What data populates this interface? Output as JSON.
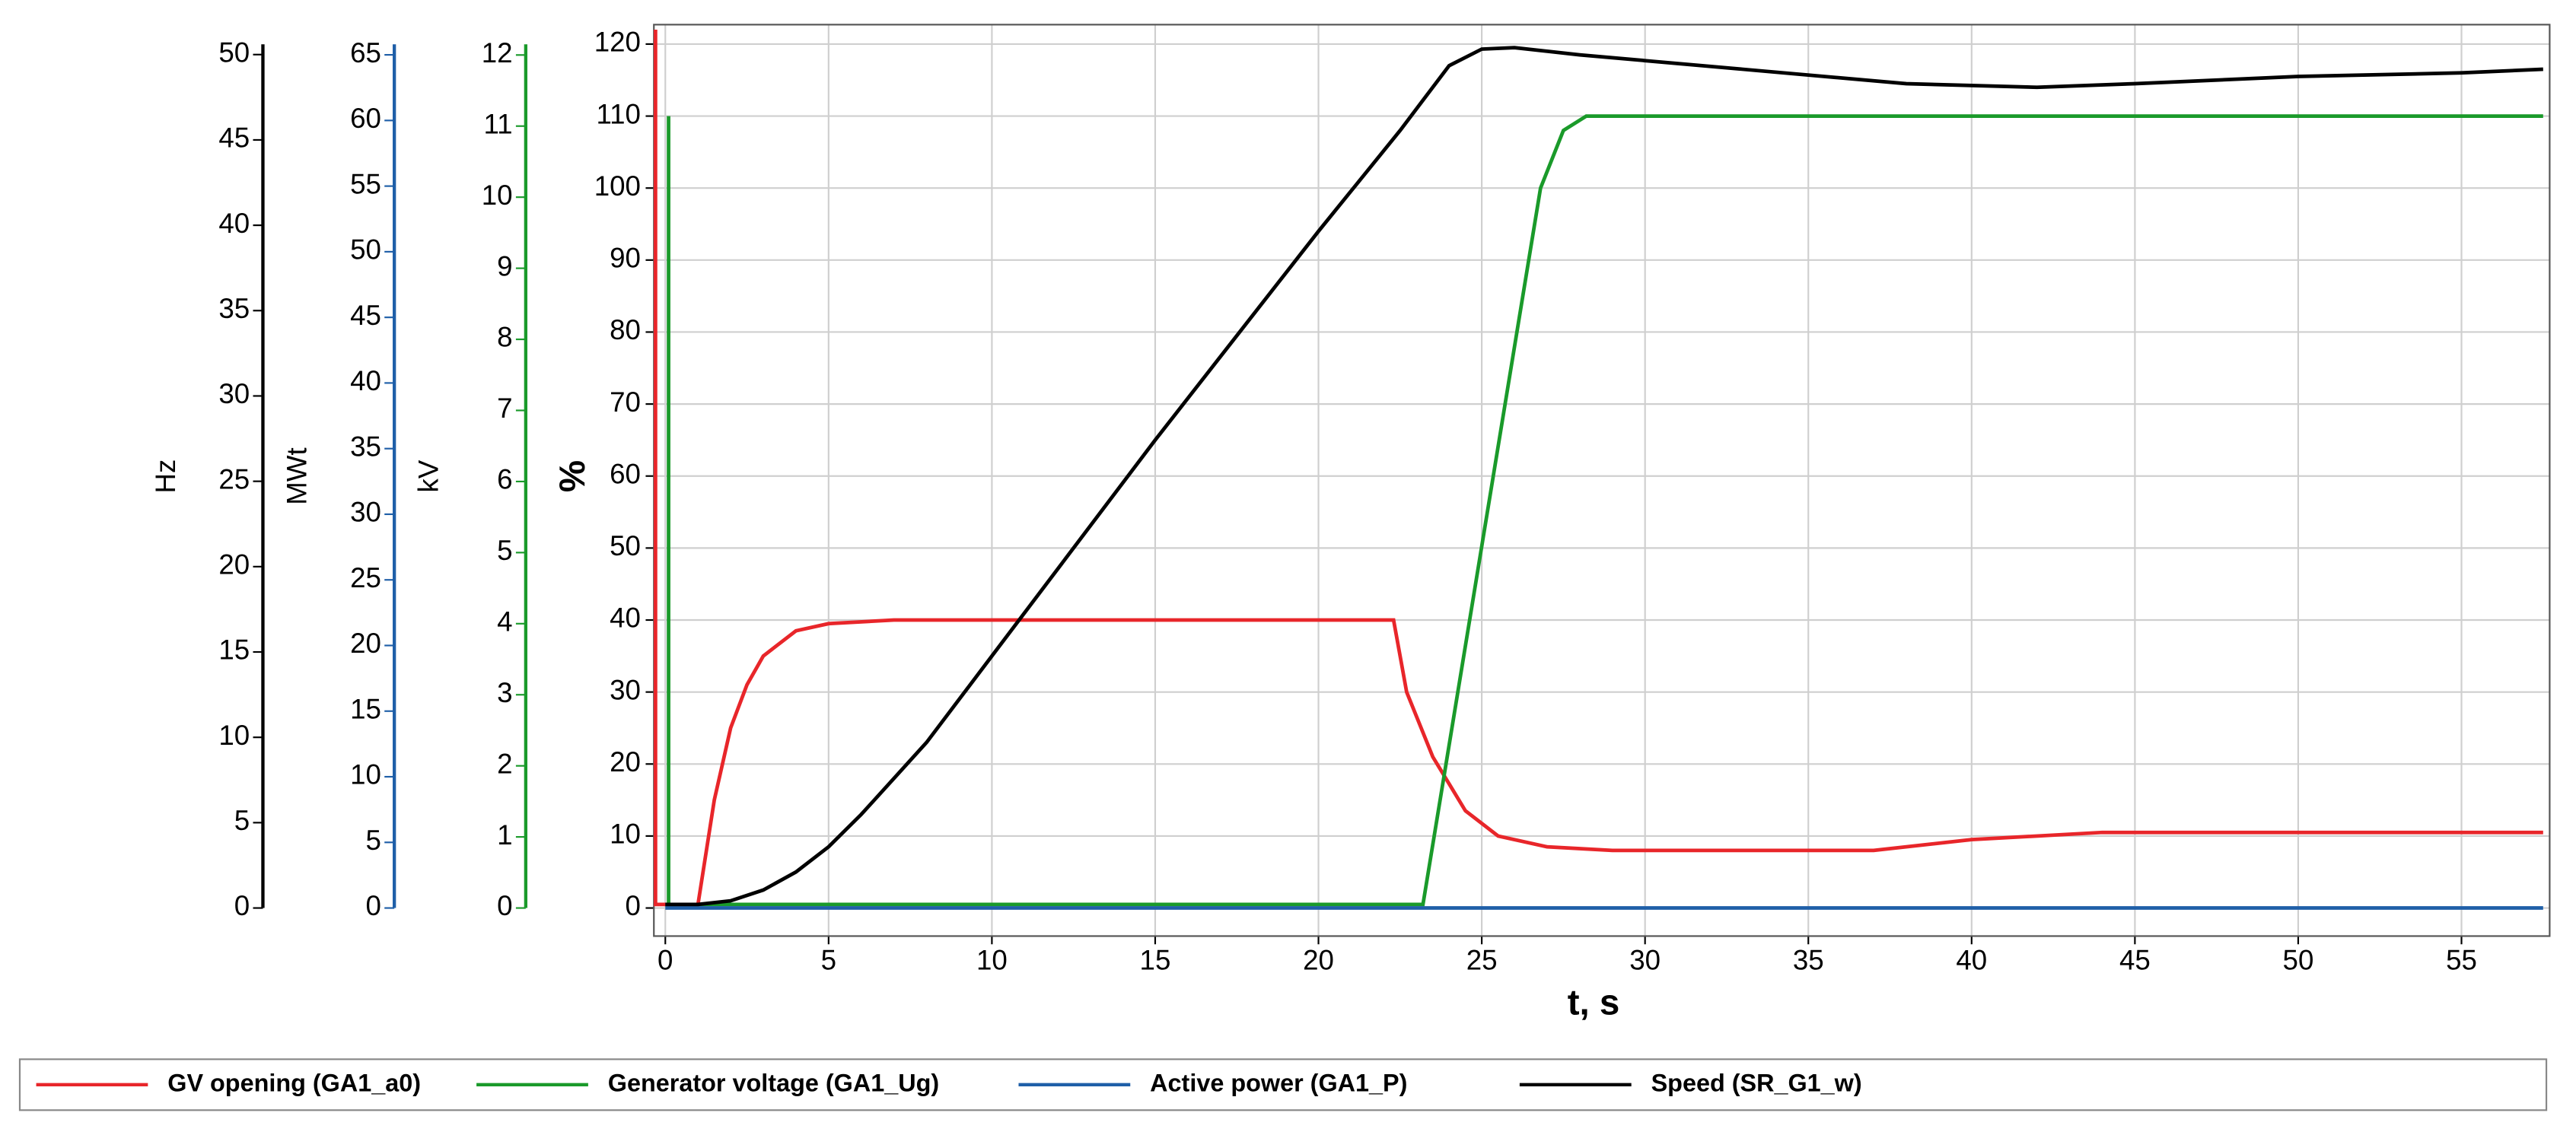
{
  "chart_data": {
    "type": "line",
    "xlabel": "t, s",
    "ylabel": "%",
    "xlim": [
      -0.35,
      57.7
    ],
    "xticks": [
      0,
      5,
      10,
      15,
      20,
      25,
      30,
      35,
      40,
      45,
      50,
      55
    ],
    "ylim": [
      -3.9,
      122.7
    ],
    "yticks": [
      0,
      10,
      20,
      30,
      40,
      50,
      60,
      70,
      80,
      90,
      100,
      110,
      120
    ],
    "grid": true,
    "legend": "bottom",
    "extra_axes": [
      {
        "label": "Hz",
        "color": "#000000",
        "lim": [
          0,
          50.6
        ],
        "ticks": [
          0,
          5,
          10,
          15,
          20,
          25,
          30,
          35,
          40,
          45,
          50
        ]
      },
      {
        "label": "MWt",
        "color": "#1f5fa8",
        "lim": [
          0,
          65.8
        ],
        "ticks": [
          0,
          5,
          10,
          15,
          20,
          25,
          30,
          35,
          40,
          45,
          50,
          55,
          60,
          65
        ]
      },
      {
        "label": "kV",
        "color": "#1a9a2a",
        "lim": [
          0,
          12.15
        ],
        "ticks": [
          0,
          1,
          2,
          3,
          4,
          5,
          6,
          7,
          8,
          9,
          10,
          11,
          12
        ]
      }
    ],
    "series": [
      {
        "name": "GV opening (GA1_a0)",
        "color": "#e8262a",
        "x": [
          -0.3,
          -0.3,
          1,
          1.5,
          2,
          2.5,
          3,
          4,
          5,
          7,
          22.3,
          22.7,
          23.5,
          24.5,
          25.5,
          27,
          29,
          37,
          40,
          44,
          57.5
        ],
        "values": [
          122,
          0.5,
          0.5,
          15,
          25,
          31,
          35,
          38.5,
          39.5,
          40,
          40,
          30,
          21,
          13.5,
          10,
          8.5,
          8,
          8,
          9.5,
          10.5,
          10.5
        ]
      },
      {
        "name": "Generator voltage (GA1_Ug)",
        "color": "#1a9a2a",
        "x": [
          0.1,
          0.1,
          23.2,
          26.8,
          27.5,
          28.2,
          57.5
        ],
        "values": [
          110,
          0.5,
          0.5,
          100,
          108,
          110,
          110
        ]
      },
      {
        "name": "Active power (GA1_P)",
        "color": "#1f5fa8",
        "x": [
          0,
          57.5
        ],
        "values": [
          0,
          0
        ]
      },
      {
        "name": "Speed (SR_G1_w)",
        "color": "#000000",
        "x": [
          0,
          1,
          2,
          3,
          4,
          5,
          6,
          8,
          10,
          15,
          20,
          22.5,
          24,
          25,
          26,
          28,
          33,
          38,
          42,
          45,
          50,
          55,
          57.5
        ],
        "values": [
          0.5,
          0.5,
          1,
          2.5,
          5,
          8.5,
          13,
          23,
          35,
          65,
          94,
          108,
          117,
          119.3,
          119.5,
          118.5,
          116.5,
          114.5,
          114,
          114.5,
          115.5,
          116,
          116.5
        ]
      }
    ]
  }
}
